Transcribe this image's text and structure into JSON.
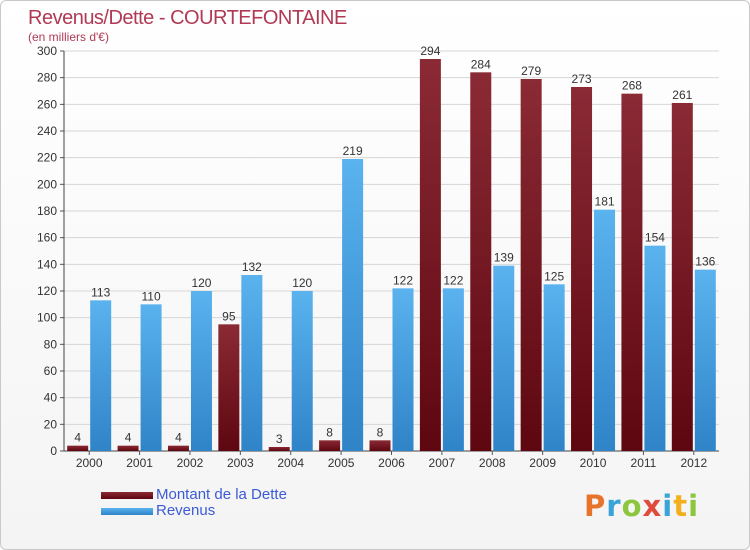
{
  "chart_data": {
    "type": "bar",
    "title": "Revenus/Dette - COURTEFONTAINE",
    "subtitle": "(en milliers d'€)",
    "categories": [
      "2000",
      "2001",
      "2002",
      "2003",
      "2004",
      "2005",
      "2006",
      "2007",
      "2008",
      "2009",
      "2010",
      "2011",
      "2012"
    ],
    "series": [
      {
        "name": "Montant de la Dette",
        "color": "#7a1420",
        "values": [
          4,
          4,
          4,
          95,
          3,
          8,
          8,
          294,
          284,
          279,
          273,
          268,
          261
        ]
      },
      {
        "name": "Revenus",
        "color": "#4aa3e6",
        "values": [
          113,
          110,
          120,
          132,
          120,
          219,
          122,
          122,
          139,
          125,
          181,
          154,
          136
        ]
      }
    ],
    "ylim": [
      0,
      300
    ],
    "yticks": [
      0,
      20,
      40,
      60,
      80,
      100,
      120,
      140,
      160,
      180,
      200,
      220,
      240,
      260,
      280,
      300
    ],
    "grid": true,
    "legend_position": "bottom-left"
  },
  "logo": {
    "letters": [
      {
        "char": "P",
        "color": "#e8732b"
      },
      {
        "char": "r",
        "color": "#3aa3d9"
      },
      {
        "char": "o",
        "color": "#8cc63f"
      },
      {
        "char": "x",
        "color": "#e14b3b"
      },
      {
        "char": "i",
        "color": "#3aa3d9"
      },
      {
        "char": "t",
        "color": "#f2b01e"
      },
      {
        "char": "i",
        "color": "#8cc63f"
      }
    ]
  }
}
